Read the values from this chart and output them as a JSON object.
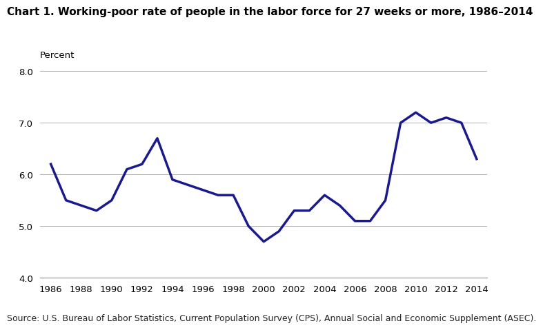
{
  "title": "Chart 1. Working-poor rate of people in the labor force for 27 weeks or more, 1986–2014",
  "ylabel": "Percent",
  "source": "Source: U.S. Bureau of Labor Statistics, Current Population Survey (CPS), Annual Social and Economic Supplement (ASEC).",
  "years": [
    1986,
    1987,
    1988,
    1989,
    1990,
    1991,
    1992,
    1993,
    1994,
    1995,
    1996,
    1997,
    1998,
    1999,
    2000,
    2001,
    2002,
    2003,
    2004,
    2005,
    2006,
    2007,
    2008,
    2009,
    2010,
    2011,
    2012,
    2013,
    2014
  ],
  "values": [
    6.2,
    5.5,
    5.4,
    5.3,
    5.5,
    6.1,
    6.2,
    6.7,
    5.9,
    5.8,
    5.7,
    5.6,
    5.6,
    5.0,
    4.7,
    4.9,
    5.3,
    5.3,
    5.6,
    5.4,
    5.1,
    5.1,
    5.5,
    7.0,
    7.2,
    7.0,
    7.1,
    7.0,
    6.3
  ],
  "line_color": "#1a1a8c",
  "line_width": 2.5,
  "ylim": [
    4.0,
    8.0
  ],
  "yticks": [
    4.0,
    5.0,
    6.0,
    7.0,
    8.0
  ],
  "background_color": "#ffffff",
  "grid_color": "#b0b0b0",
  "title_fontsize": 11,
  "tick_fontsize": 9.5,
  "source_fontsize": 9,
  "ylabel_fontsize": 9.5
}
